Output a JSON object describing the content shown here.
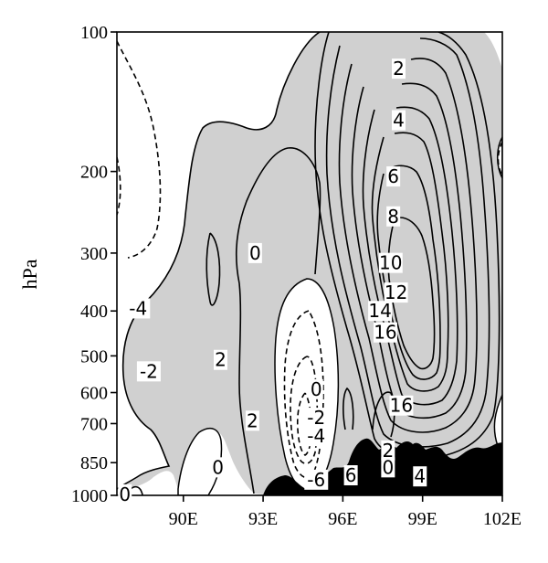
{
  "chart_data": {
    "type": "contour",
    "ylabel": "hPa",
    "x_ticks": [
      {
        "value": 90,
        "label": "90E"
      },
      {
        "value": 93,
        "label": "93E"
      },
      {
        "value": 96,
        "label": "96E"
      },
      {
        "value": 99,
        "label": "99E"
      },
      {
        "value": 102,
        "label": "102E"
      }
    ],
    "y_ticks": [
      {
        "value": 100,
        "label": "100"
      },
      {
        "value": 200,
        "label": "200"
      },
      {
        "value": 300,
        "label": "300"
      },
      {
        "value": 400,
        "label": "400"
      },
      {
        "value": 500,
        "label": "500"
      },
      {
        "value": 600,
        "label": "600"
      },
      {
        "value": 700,
        "label": "700"
      },
      {
        "value": 850,
        "label": "850"
      },
      {
        "value": 1000,
        "label": "1000"
      }
    ],
    "xlim": [
      87.5,
      102
    ],
    "ylim": [
      1000,
      100
    ],
    "y_scale": "log",
    "positive_shading": "#d0d0d0",
    "terrain_color": "#000000",
    "contour_labels": [
      {
        "text": "2",
        "lon": 98.1,
        "p": 120
      },
      {
        "text": "4",
        "lon": 98.1,
        "p": 155
      },
      {
        "text": "6",
        "lon": 97.9,
        "p": 205
      },
      {
        "text": "8",
        "lon": 97.9,
        "p": 250
      },
      {
        "text": "10",
        "lon": 97.8,
        "p": 315
      },
      {
        "text": "12",
        "lon": 98.0,
        "p": 365
      },
      {
        "text": "14",
        "lon": 97.4,
        "p": 400
      },
      {
        "text": "16",
        "lon": 97.6,
        "p": 445
      },
      {
        "text": "16",
        "lon": 98.2,
        "p": 640
      },
      {
        "text": "0",
        "lon": 92.7,
        "p": 300
      },
      {
        "text": "-4",
        "lon": 88.3,
        "p": 395
      },
      {
        "text": "-2",
        "lon": 88.7,
        "p": 540
      },
      {
        "text": "2",
        "lon": 91.4,
        "p": 510
      },
      {
        "text": "2",
        "lon": 92.6,
        "p": 690
      },
      {
        "text": "0",
        "lon": 91.3,
        "p": 870
      },
      {
        "text": "0",
        "lon": 95.0,
        "p": 590
      },
      {
        "text": "-2",
        "lon": 95.0,
        "p": 680
      },
      {
        "text": "-4",
        "lon": 95.0,
        "p": 745
      },
      {
        "text": "-6",
        "lon": 95.0,
        "p": 925
      },
      {
        "text": "6",
        "lon": 96.3,
        "p": 905
      },
      {
        "text": "2",
        "lon": 97.7,
        "p": 800
      },
      {
        "text": "0",
        "lon": 97.7,
        "p": 870
      },
      {
        "text": "4",
        "lon": 98.9,
        "p": 910
      },
      {
        "text": "0",
        "lon": 87.8,
        "p": 995
      }
    ]
  }
}
